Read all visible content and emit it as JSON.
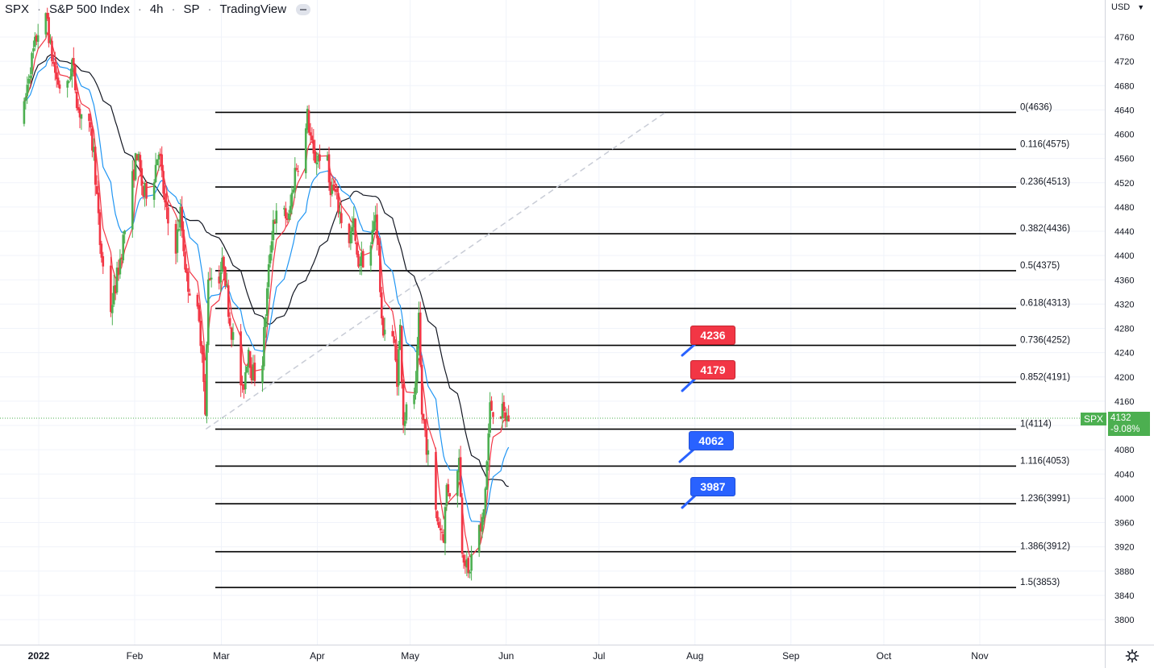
{
  "header": {
    "symbol": "SPX",
    "name": "S&P 500 Index",
    "interval": "4h",
    "exchange": "SP",
    "provider": "TradingView"
  },
  "currency": "USD",
  "symbol_label": "SPX",
  "last_price": "4132",
  "change_pct": "-9.08%",
  "colors": {
    "up": "#4caf50",
    "down": "#f23645",
    "ema_fast": "#f23645",
    "ema_mid": "#2196f3",
    "sma_slow": "#131722",
    "grid": "#f0f3fa",
    "fib_line": "#000000",
    "trend_line": "#c8ccd6"
  },
  "callouts": [
    {
      "label": "4236",
      "color": "red"
    },
    {
      "label": "4179",
      "color": "red"
    },
    {
      "label": "4062",
      "color": "blue"
    },
    {
      "label": "3987",
      "color": "blue"
    }
  ],
  "chart_data": {
    "type": "candlestick",
    "title": "SPX S&P 500 Index 4h SP",
    "x_ticks": [
      "2022",
      "Feb",
      "Mar",
      "Apr",
      "May",
      "Jun",
      "Jul",
      "Aug",
      "Sep",
      "Oct",
      "Nov"
    ],
    "y_ticks": [
      4760,
      4720,
      4680,
      4640,
      4600,
      4560,
      4520,
      4480,
      4440,
      4400,
      4360,
      4320,
      4280,
      4240,
      4200,
      4160,
      4120,
      4080,
      4040,
      4000,
      3960,
      3920,
      3880,
      3840,
      3800
    ],
    "ylim": [
      3778,
      4800
    ],
    "grid": true,
    "fib_levels": [
      {
        "ratio": "0",
        "price": 4636
      },
      {
        "ratio": "0.116",
        "price": 4575
      },
      {
        "ratio": "0.236",
        "price": 4513
      },
      {
        "ratio": "0.382",
        "price": 4436
      },
      {
        "ratio": "0.5",
        "price": 4375
      },
      {
        "ratio": "0.618",
        "price": 4313
      },
      {
        "ratio": "0.736",
        "price": 4252
      },
      {
        "ratio": "0.852",
        "price": 4191
      },
      {
        "ratio": "1",
        "price": 4114
      },
      {
        "ratio": "1.116",
        "price": 4053
      },
      {
        "ratio": "1.236",
        "price": 3991
      },
      {
        "ratio": "1.386",
        "price": 3912
      },
      {
        "ratio": "1.5",
        "price": 3853
      }
    ],
    "last_price": 4132,
    "price_path": [
      [
        "2021-12-27",
        4620
      ],
      [
        "2021-12-29",
        4700
      ],
      [
        "2022-01-01",
        4770
      ],
      [
        "2022-01-04",
        4790
      ],
      [
        "2022-01-05",
        4740
      ],
      [
        "2022-01-07",
        4690
      ],
      [
        "2022-01-10",
        4660
      ],
      [
        "2022-01-12",
        4720
      ],
      [
        "2022-01-14",
        4640
      ],
      [
        "2022-01-17",
        4620
      ],
      [
        "2022-01-19",
        4570
      ],
      [
        "2022-01-21",
        4420
      ],
      [
        "2022-01-24",
        4300
      ],
      [
        "2022-01-26",
        4350
      ],
      [
        "2022-01-28",
        4410
      ],
      [
        "2022-01-31",
        4510
      ],
      [
        "2022-02-02",
        4570
      ],
      [
        "2022-02-04",
        4500
      ],
      [
        "2022-02-07",
        4520
      ],
      [
        "2022-02-09",
        4580
      ],
      [
        "2022-02-11",
        4480
      ],
      [
        "2022-02-14",
        4400
      ],
      [
        "2022-02-16",
        4470
      ],
      [
        "2022-02-18",
        4360
      ],
      [
        "2022-02-21",
        4320
      ],
      [
        "2022-02-23",
        4250
      ],
      [
        "2022-02-24",
        4130
      ],
      [
        "2022-02-25",
        4370
      ],
      [
        "2022-02-28",
        4360
      ],
      [
        "2022-03-02",
        4390
      ],
      [
        "2022-03-04",
        4290
      ],
      [
        "2022-03-07",
        4210
      ],
      [
        "2022-03-08",
        4170
      ],
      [
        "2022-03-10",
        4250
      ],
      [
        "2022-03-11",
        4210
      ],
      [
        "2022-03-14",
        4190
      ],
      [
        "2022-03-15",
        4270
      ],
      [
        "2022-03-17",
        4410
      ],
      [
        "2022-03-18",
        4460
      ],
      [
        "2022-03-21",
        4470
      ],
      [
        "2022-03-23",
        4460
      ],
      [
        "2022-03-25",
        4540
      ],
      [
        "2022-03-28",
        4580
      ],
      [
        "2022-03-29",
        4630
      ],
      [
        "2022-03-31",
        4560
      ],
      [
        "2022-04-01",
        4560
      ],
      [
        "2022-04-04",
        4580
      ],
      [
        "2022-04-05",
        4520
      ],
      [
        "2022-04-07",
        4500
      ],
      [
        "2022-04-08",
        4480
      ],
      [
        "2022-04-11",
        4420
      ],
      [
        "2022-04-13",
        4450
      ],
      [
        "2022-04-14",
        4390
      ],
      [
        "2022-04-18",
        4400
      ],
      [
        "2022-04-20",
        4470
      ],
      [
        "2022-04-21",
        4410
      ],
      [
        "2022-04-22",
        4280
      ],
      [
        "2022-04-25",
        4290
      ],
      [
        "2022-04-27",
        4200
      ],
      [
        "2022-04-28",
        4280
      ],
      [
        "2022-04-29",
        4130
      ],
      [
        "2022-05-03",
        4180
      ],
      [
        "2022-05-04",
        4290
      ],
      [
        "2022-05-05",
        4140
      ],
      [
        "2022-05-06",
        4110
      ],
      [
        "2022-05-09",
        3980
      ],
      [
        "2022-05-11",
        3950
      ],
      [
        "2022-05-12",
        3940
      ],
      [
        "2022-05-13",
        4020
      ],
      [
        "2022-05-16",
        4000
      ],
      [
        "2022-05-17",
        4080
      ],
      [
        "2022-05-18",
        3920
      ],
      [
        "2022-05-19",
        3900
      ],
      [
        "2022-05-20",
        3870
      ],
      [
        "2022-05-23",
        3970
      ],
      [
        "2022-05-24",
        3940
      ],
      [
        "2022-05-25",
        3980
      ],
      [
        "2022-05-26",
        4060
      ],
      [
        "2022-05-27",
        4150
      ],
      [
        "2022-05-31",
        4140
      ],
      [
        "2022-06-01",
        4132
      ]
    ]
  }
}
